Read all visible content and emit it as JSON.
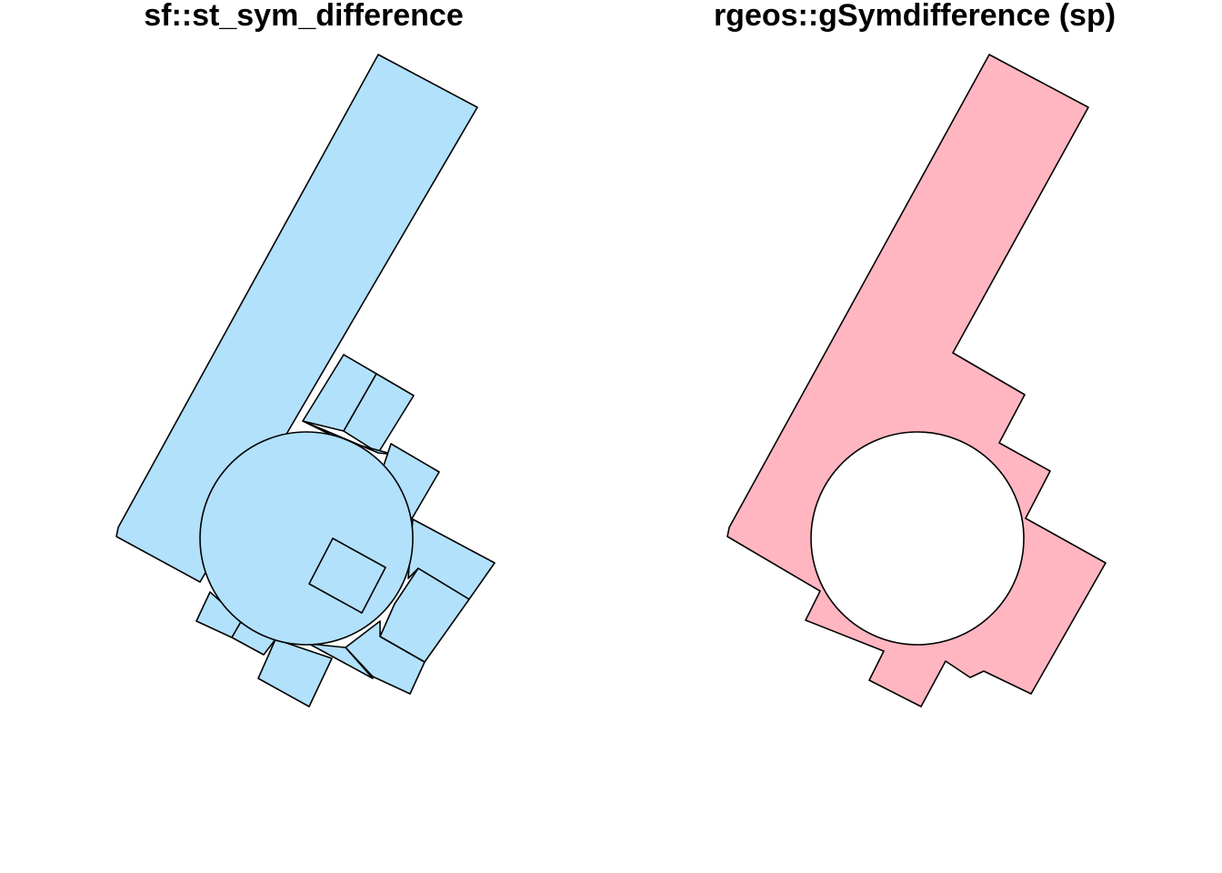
{
  "panels": [
    {
      "title": "sf::st_sym_difference",
      "fill_color": "#B2E1FC"
    },
    {
      "title": "rgeos::gSymdifference (sp)",
      "fill_color": "#FFB6C1",
      "hole_color": "#FFFFFF"
    }
  ],
  "outline_color": "#000000"
}
